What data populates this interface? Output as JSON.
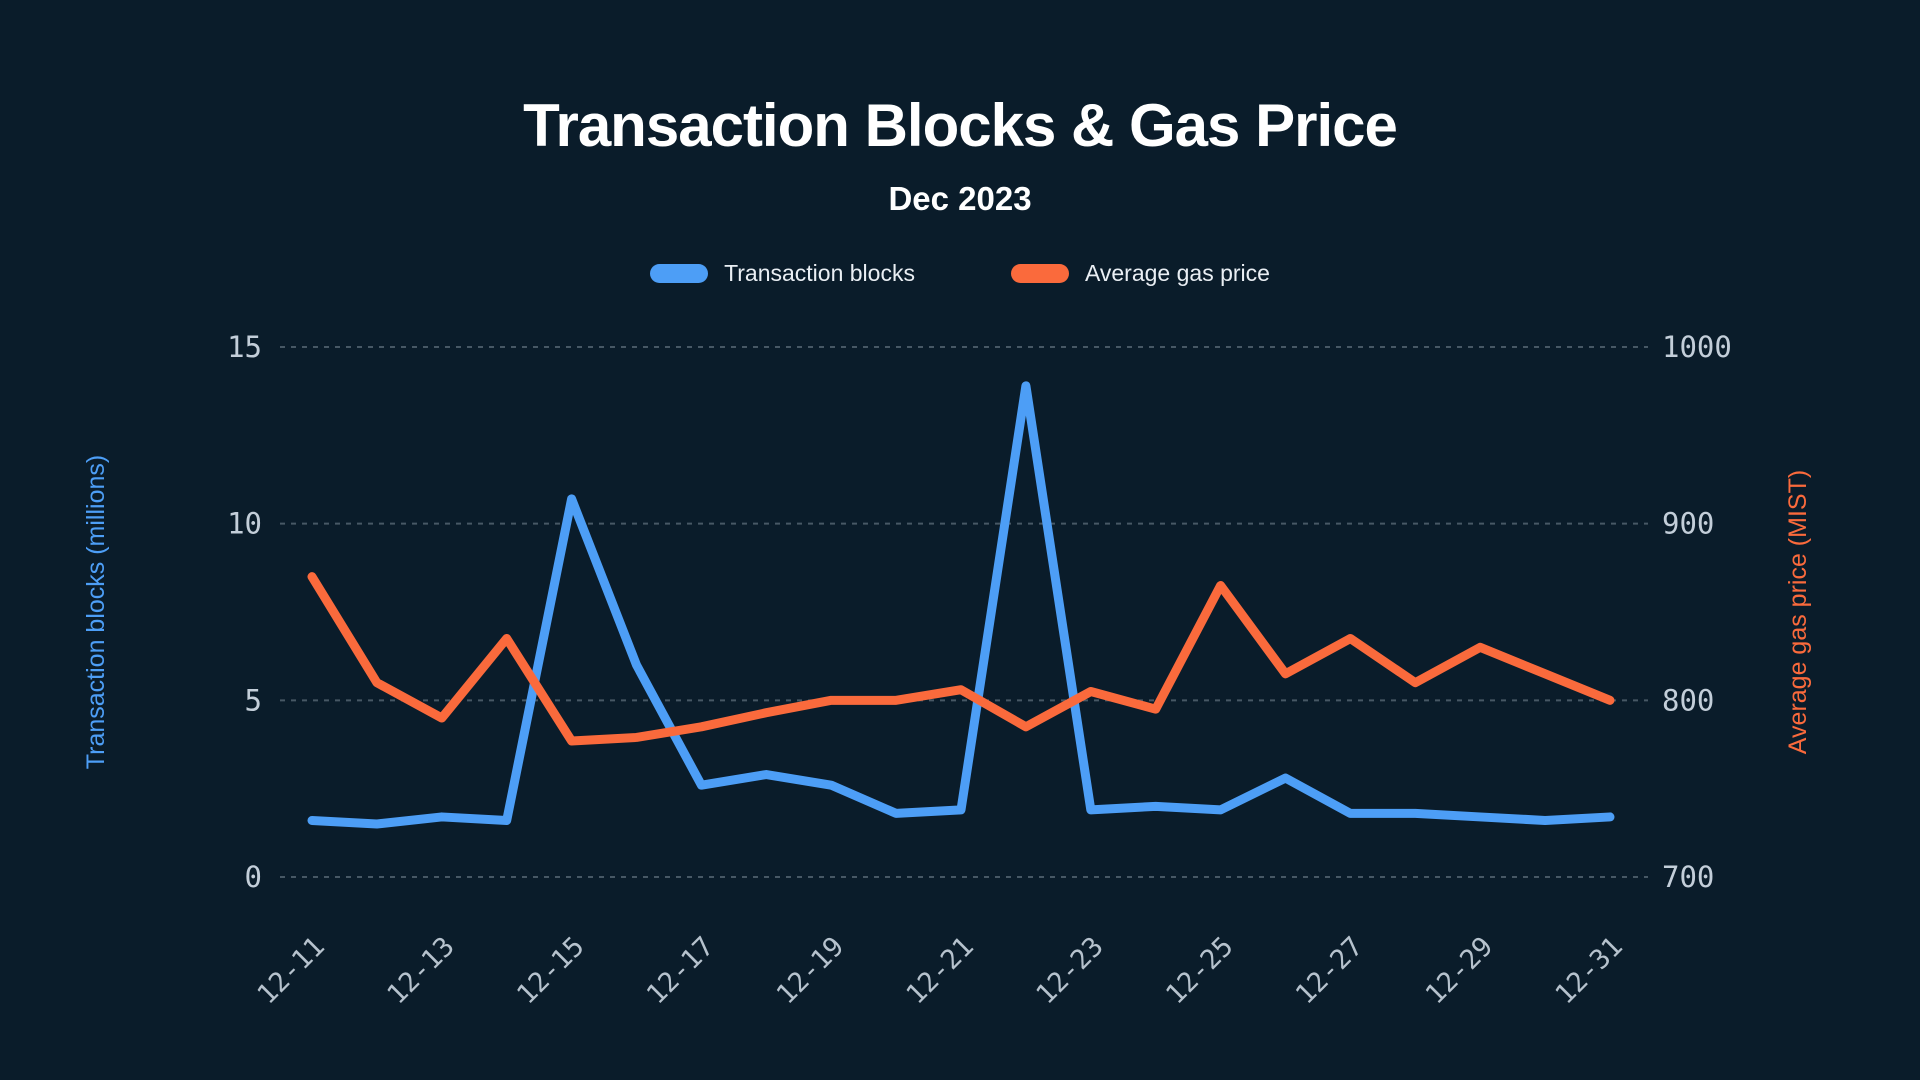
{
  "header": {
    "title": "Transaction Blocks & Gas Price",
    "subtitle": "Dec 2023"
  },
  "legend": {
    "items": [
      {
        "label": "Transaction blocks",
        "color": "#4d9ef6"
      },
      {
        "label": "Average gas price",
        "color": "#fa6a3c"
      }
    ]
  },
  "colors": {
    "background": "#0a1c2a",
    "title_text": "#ffffff",
    "legend_text": "#eaeff4",
    "axis_tick_text": "#c3ced9",
    "x_tick_text": "#b6c2cd",
    "gridline": "#93a2ae",
    "blue_series": "#4d9ef6",
    "orange_series": "#fa6a3c"
  },
  "chart_data": {
    "type": "line",
    "title": "Transaction Blocks & Gas Price",
    "subtitle": "Dec 2023",
    "grid": "horizontal-dashed",
    "legend_position": "top",
    "x": [
      "12-11",
      "12-12",
      "12-13",
      "12-14",
      "12-15",
      "12-16",
      "12-17",
      "12-18",
      "12-19",
      "12-20",
      "12-21",
      "12-22",
      "12-23",
      "12-24",
      "12-25",
      "12-26",
      "12-27",
      "12-28",
      "12-29",
      "12-30",
      "12-31"
    ],
    "x_tick_labels": [
      "12-11",
      "12-13",
      "12-15",
      "12-17",
      "12-19",
      "12-21",
      "12-23",
      "12-25",
      "12-27",
      "12-29",
      "12-31"
    ],
    "left_axis": {
      "label": "Transaction blocks (millions)",
      "min": 0,
      "max": 15,
      "ticks": [
        0,
        5,
        10,
        15
      ],
      "tick_labels": [
        "0",
        "5",
        "10",
        "15"
      ],
      "color": "#4d9ef6"
    },
    "right_axis": {
      "label": "Average gas price (MIST)",
      "min": 700,
      "max": 1000,
      "ticks": [
        700,
        800,
        900,
        1000
      ],
      "tick_labels": [
        "700",
        "800",
        "900",
        "1000"
      ],
      "color": "#fa6a3c"
    },
    "series": [
      {
        "name": "Transaction blocks",
        "axis": "left",
        "color": "#4d9ef6",
        "values": [
          1.6,
          1.5,
          1.7,
          1.6,
          10.7,
          6.0,
          2.6,
          2.9,
          2.6,
          1.8,
          1.9,
          13.9,
          1.9,
          2.0,
          1.9,
          2.8,
          1.8,
          1.8,
          1.7,
          1.6,
          1.7
        ]
      },
      {
        "name": "Average gas price",
        "axis": "right",
        "color": "#fa6a3c",
        "values": [
          870,
          810,
          790,
          835,
          777,
          779,
          785,
          793,
          800,
          800,
          806,
          785,
          805,
          795,
          865,
          815,
          835,
          810,
          830,
          815,
          800
        ]
      }
    ]
  }
}
